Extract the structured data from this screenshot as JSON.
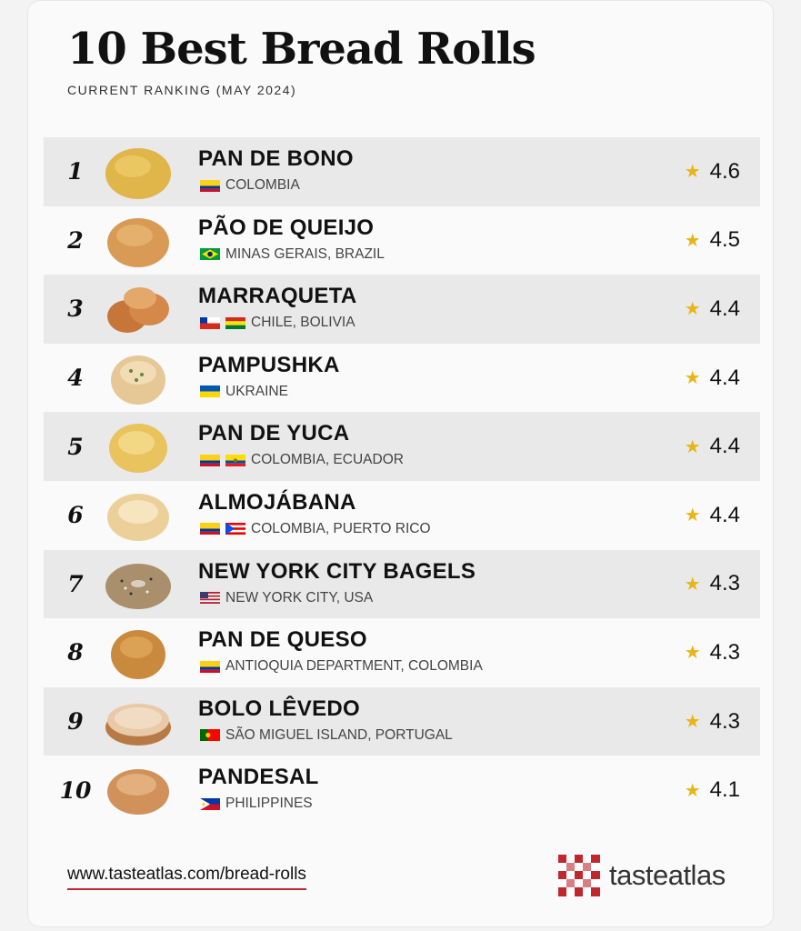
{
  "title": "10 Best Bread Rolls",
  "subtitle": "CURRENT RANKING (MAY 2024)",
  "rows": [
    {
      "rank": "1",
      "name": "PAN DE BONO",
      "origin": "COLOMBIA",
      "rating": "4.6"
    },
    {
      "rank": "2",
      "name": "PÃO DE QUEIJO",
      "origin": "MINAS GERAIS, BRAZIL",
      "rating": "4.5"
    },
    {
      "rank": "3",
      "name": "MARRAQUETA",
      "origin": "CHILE, BOLIVIA",
      "rating": "4.4"
    },
    {
      "rank": "4",
      "name": "PAMPUSHKA",
      "origin": "UKRAINE",
      "rating": "4.4"
    },
    {
      "rank": "5",
      "name": "PAN DE YUCA",
      "origin": "COLOMBIA, ECUADOR",
      "rating": "4.4"
    },
    {
      "rank": "6",
      "name": "ALMOJÁBANA",
      "origin": "COLOMBIA, PUERTO RICO",
      "rating": "4.4"
    },
    {
      "rank": "7",
      "name": "NEW YORK CITY BAGELS",
      "origin": "NEW YORK CITY, USA",
      "rating": "4.3"
    },
    {
      "rank": "8",
      "name": "PAN DE QUESO",
      "origin": "ANTIOQUIA DEPARTMENT, COLOMBIA",
      "rating": "4.3"
    },
    {
      "rank": "9",
      "name": "BOLO LÊVEDO",
      "origin": "SÃO MIGUEL ISLAND, PORTUGAL",
      "rating": "4.3"
    },
    {
      "rank": "10",
      "name": "PANDESAL",
      "origin": "PHILIPPINES",
      "rating": "4.1"
    }
  ],
  "icons": {
    "rating": "star-icon",
    "flags": [
      "colombia-flag-icon",
      "brazil-flag-icon",
      "chile-flag-icon",
      "bolivia-flag-icon",
      "ukraine-flag-icon",
      "ecuador-flag-icon",
      "puerto-rico-flag-icon",
      "usa-flag-icon",
      "portugal-flag-icon",
      "philippines-flag-icon"
    ]
  },
  "colors": {
    "star": "#e8b416",
    "brand_red": "#c0282e",
    "row_shade": "#e9e9e9"
  },
  "footer": {
    "link": "www.tasteatlas.com/bread-rolls",
    "brand": "tasteatlas"
  }
}
